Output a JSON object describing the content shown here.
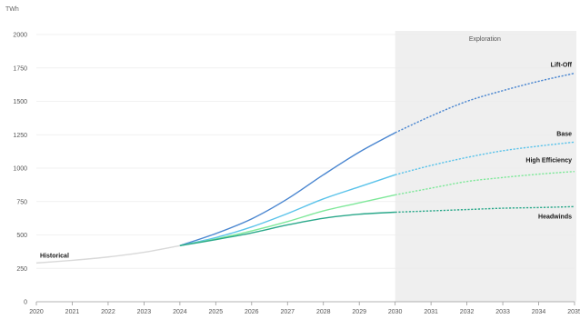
{
  "chart_data": {
    "type": "line",
    "ylabel": "TWh",
    "ylim": [
      0,
      2000
    ],
    "xlim": [
      2020,
      2035
    ],
    "yticks": [
      0,
      250,
      500,
      750,
      1000,
      1250,
      1500,
      1750,
      2000
    ],
    "xticks": [
      2020,
      2021,
      2022,
      2023,
      2024,
      2025,
      2026,
      2027,
      2028,
      2029,
      2030,
      2031,
      2032,
      2033,
      2034,
      2035
    ],
    "grid": "horizontal",
    "shaded_region": {
      "label": "Exploration",
      "x_start": 2030,
      "x_end": 2035,
      "color": "#efefef"
    },
    "series": [
      {
        "name": "Historical",
        "color": "#d9d9d9",
        "solid_until": 2024,
        "x": [
          2020,
          2021,
          2022,
          2023,
          2024
        ],
        "values": [
          290,
          310,
          335,
          370,
          420
        ]
      },
      {
        "name": "Lift-Off",
        "color": "#4a86d0",
        "solid_until": 2030,
        "x": [
          2024,
          2025,
          2026,
          2027,
          2028,
          2029,
          2030,
          2031,
          2032,
          2033,
          2034,
          2035
        ],
        "values": [
          420,
          510,
          620,
          770,
          950,
          1120,
          1265,
          1390,
          1500,
          1580,
          1650,
          1710
        ]
      },
      {
        "name": "Base",
        "color": "#5bc3ea",
        "solid_until": 2030,
        "x": [
          2024,
          2025,
          2026,
          2027,
          2028,
          2029,
          2030,
          2031,
          2032,
          2033,
          2034,
          2035
        ],
        "values": [
          420,
          480,
          560,
          660,
          770,
          860,
          950,
          1020,
          1080,
          1130,
          1165,
          1195
        ]
      },
      {
        "name": "High Efficiency",
        "color": "#7fe89a",
        "solid_until": 2030,
        "x": [
          2024,
          2025,
          2026,
          2027,
          2028,
          2029,
          2030,
          2031,
          2032,
          2033,
          2034,
          2035
        ],
        "values": [
          420,
          470,
          530,
          600,
          680,
          740,
          800,
          850,
          900,
          930,
          955,
          975
        ]
      },
      {
        "name": "Headwinds",
        "color": "#2aa88a",
        "solid_until": 2030,
        "x": [
          2024,
          2025,
          2026,
          2027,
          2028,
          2029,
          2030,
          2031,
          2032,
          2033,
          2034,
          2035
        ],
        "values": [
          420,
          465,
          515,
          575,
          625,
          655,
          670,
          680,
          690,
          700,
          705,
          712
        ]
      }
    ]
  }
}
